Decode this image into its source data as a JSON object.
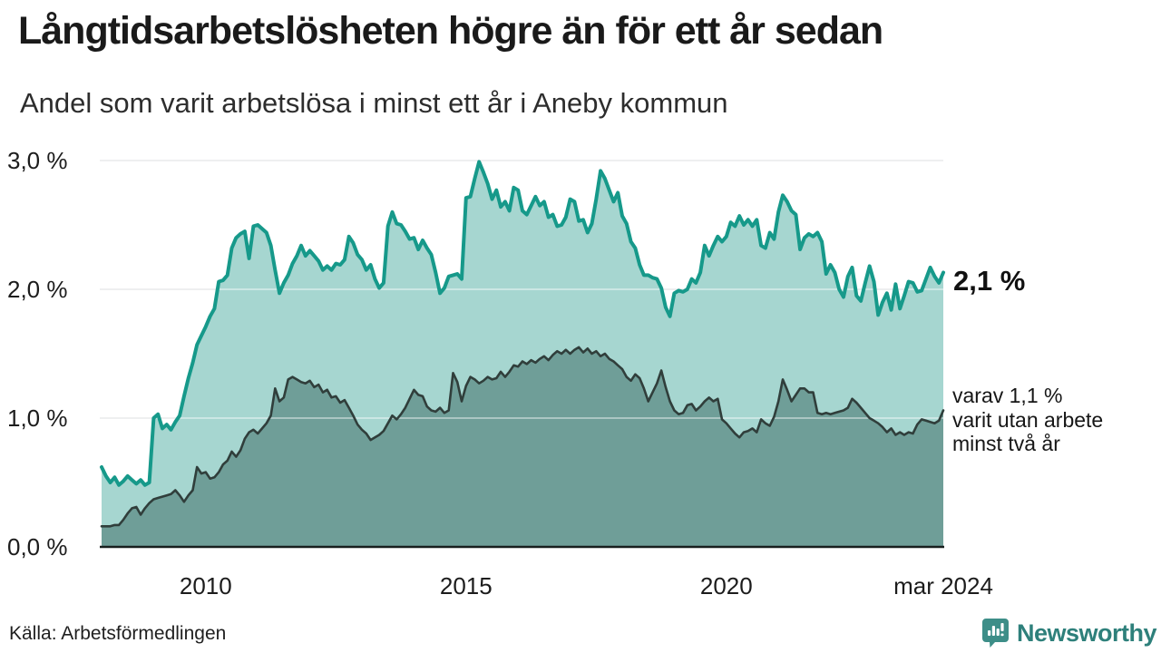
{
  "header": {
    "title": "Långtidsarbetslösheten högre än för ett år sedan",
    "subtitle": "Andel som varit arbetslösa i minst ett år i Aneby kommun"
  },
  "annotations": {
    "latest_value": "2,1 %",
    "sub_lines": [
      "varav 1,1 %",
      "varit utan arbete",
      "minst två år"
    ]
  },
  "footer": {
    "source": "Källa: Arbetsförmedlingen",
    "brand": "Newsworthy"
  },
  "colors": {
    "series1_stroke": "#16998a",
    "series1_fill": "#a6d6d0",
    "series2_stroke": "#303e3b",
    "series2_fill": "#6f9e98",
    "gridline": "#e2e4e6",
    "axis_baseline": "#181f1e",
    "brand_teal": "#3d8e88",
    "text": "#1a1a1a"
  },
  "chart_data": {
    "type": "area",
    "title": "Långtidsarbetslösheten högre än för ett år sedan",
    "subtitle": "Andel som varit arbetslösa i minst ett år i Aneby kommun",
    "unit": "%",
    "frequency": "monthly",
    "x_start": "2008-01",
    "x_end": "2024-03",
    "ylim": [
      0,
      3.0
    ],
    "grid": "horizontal",
    "legend": "none",
    "y_ticks": [
      {
        "label": "0,0 %",
        "v": 0
      },
      {
        "label": "1,0 %",
        "v": 1
      },
      {
        "label": "2,0 %",
        "v": 2
      },
      {
        "label": "3,0 %",
        "v": 3
      }
    ],
    "x_ticks": [
      {
        "label": "2010",
        "t": 2010.0
      },
      {
        "label": "2015",
        "t": 2015.0
      },
      {
        "label": "2020",
        "t": 2020.0
      },
      {
        "label": "mar 2024",
        "t": 2024.167
      }
    ],
    "series": [
      {
        "name": "Arbetslösa minst ett år",
        "latest_label": "2,1 %",
        "stroke": "#16998a",
        "fill": "#a6d6d0",
        "values": [
          0.62,
          0.55,
          0.5,
          0.54,
          0.48,
          0.51,
          0.55,
          0.52,
          0.49,
          0.52,
          0.48,
          0.5,
          1.0,
          1.03,
          0.92,
          0.95,
          0.91,
          0.97,
          1.02,
          1.17,
          1.31,
          1.43,
          1.57,
          1.64,
          1.71,
          1.79,
          1.85,
          2.06,
          2.07,
          2.11,
          2.32,
          2.4,
          2.43,
          2.45,
          2.24,
          2.49,
          2.5,
          2.47,
          2.44,
          2.34,
          2.15,
          1.97,
          2.05,
          2.11,
          2.2,
          2.26,
          2.34,
          2.26,
          2.3,
          2.26,
          2.22,
          2.15,
          2.18,
          2.15,
          2.2,
          2.19,
          2.23,
          2.41,
          2.36,
          2.27,
          2.23,
          2.15,
          2.19,
          2.08,
          2.01,
          2.05,
          2.49,
          2.6,
          2.51,
          2.5,
          2.45,
          2.39,
          2.4,
          2.31,
          2.38,
          2.32,
          2.27,
          2.13,
          1.97,
          2.01,
          2.1,
          2.11,
          2.12,
          2.08,
          2.71,
          2.72,
          2.86,
          2.99,
          2.91,
          2.82,
          2.7,
          2.77,
          2.64,
          2.68,
          2.61,
          2.79,
          2.77,
          2.61,
          2.58,
          2.65,
          2.72,
          2.65,
          2.68,
          2.56,
          2.58,
          2.49,
          2.5,
          2.56,
          2.7,
          2.68,
          2.53,
          2.54,
          2.44,
          2.51,
          2.7,
          2.92,
          2.86,
          2.77,
          2.68,
          2.75,
          2.57,
          2.51,
          2.37,
          2.32,
          2.19,
          2.11,
          2.11,
          2.09,
          2.08,
          2.01,
          1.86,
          1.79,
          1.97,
          1.99,
          1.98,
          2.0,
          2.08,
          2.05,
          2.13,
          2.34,
          2.26,
          2.34,
          2.41,
          2.37,
          2.41,
          2.52,
          2.49,
          2.57,
          2.5,
          2.54,
          2.49,
          2.54,
          2.34,
          2.32,
          2.44,
          2.39,
          2.6,
          2.73,
          2.68,
          2.61,
          2.58,
          2.31,
          2.4,
          2.43,
          2.41,
          2.44,
          2.37,
          2.12,
          2.19,
          2.13,
          2.0,
          1.94,
          2.1,
          2.17,
          1.95,
          1.91,
          2.05,
          2.18,
          2.06,
          1.8,
          1.9,
          1.97,
          1.84,
          2.04,
          1.85,
          1.95,
          2.06,
          2.05,
          1.98,
          1.99,
          2.08,
          2.17,
          2.1,
          2.05,
          2.13
        ]
      },
      {
        "name": "varav arbetslösa minst två år",
        "latest_label": "1,1 %",
        "stroke": "#303e3b",
        "fill": "#6f9e98",
        "values": [
          0.16,
          0.16,
          0.16,
          0.17,
          0.17,
          0.21,
          0.26,
          0.3,
          0.31,
          0.25,
          0.3,
          0.34,
          0.37,
          0.38,
          0.39,
          0.4,
          0.41,
          0.44,
          0.4,
          0.35,
          0.4,
          0.44,
          0.62,
          0.57,
          0.58,
          0.53,
          0.54,
          0.58,
          0.64,
          0.67,
          0.74,
          0.7,
          0.75,
          0.84,
          0.89,
          0.91,
          0.88,
          0.92,
          0.96,
          1.02,
          1.23,
          1.13,
          1.16,
          1.3,
          1.32,
          1.3,
          1.28,
          1.27,
          1.29,
          1.24,
          1.26,
          1.2,
          1.22,
          1.16,
          1.17,
          1.12,
          1.14,
          1.08,
          1.02,
          0.95,
          0.91,
          0.88,
          0.83,
          0.85,
          0.87,
          0.9,
          0.96,
          1.02,
          0.99,
          1.03,
          1.08,
          1.15,
          1.22,
          1.18,
          1.17,
          1.09,
          1.06,
          1.05,
          1.08,
          1.04,
          1.06,
          1.35,
          1.28,
          1.13,
          1.25,
          1.32,
          1.3,
          1.27,
          1.29,
          1.32,
          1.3,
          1.31,
          1.36,
          1.32,
          1.36,
          1.41,
          1.4,
          1.44,
          1.42,
          1.45,
          1.43,
          1.46,
          1.48,
          1.45,
          1.49,
          1.52,
          1.5,
          1.53,
          1.5,
          1.53,
          1.55,
          1.51,
          1.54,
          1.5,
          1.52,
          1.48,
          1.5,
          1.46,
          1.44,
          1.41,
          1.38,
          1.32,
          1.29,
          1.34,
          1.31,
          1.23,
          1.13,
          1.2,
          1.27,
          1.37,
          1.24,
          1.13,
          1.06,
          1.03,
          1.04,
          1.1,
          1.11,
          1.06,
          1.09,
          1.13,
          1.16,
          1.13,
          1.15,
          0.99,
          0.96,
          0.92,
          0.88,
          0.85,
          0.89,
          0.9,
          0.92,
          0.89,
          0.99,
          0.96,
          0.94,
          1.01,
          1.13,
          1.3,
          1.22,
          1.13,
          1.18,
          1.23,
          1.23,
          1.2,
          1.2,
          1.04,
          1.03,
          1.04,
          1.03,
          1.04,
          1.05,
          1.06,
          1.08,
          1.15,
          1.12,
          1.08,
          1.04,
          1.0,
          0.98,
          0.96,
          0.93,
          0.89,
          0.92,
          0.87,
          0.89,
          0.87,
          0.89,
          0.88,
          0.95,
          0.99,
          0.98,
          0.97,
          0.96,
          0.98,
          1.06
        ]
      }
    ]
  }
}
